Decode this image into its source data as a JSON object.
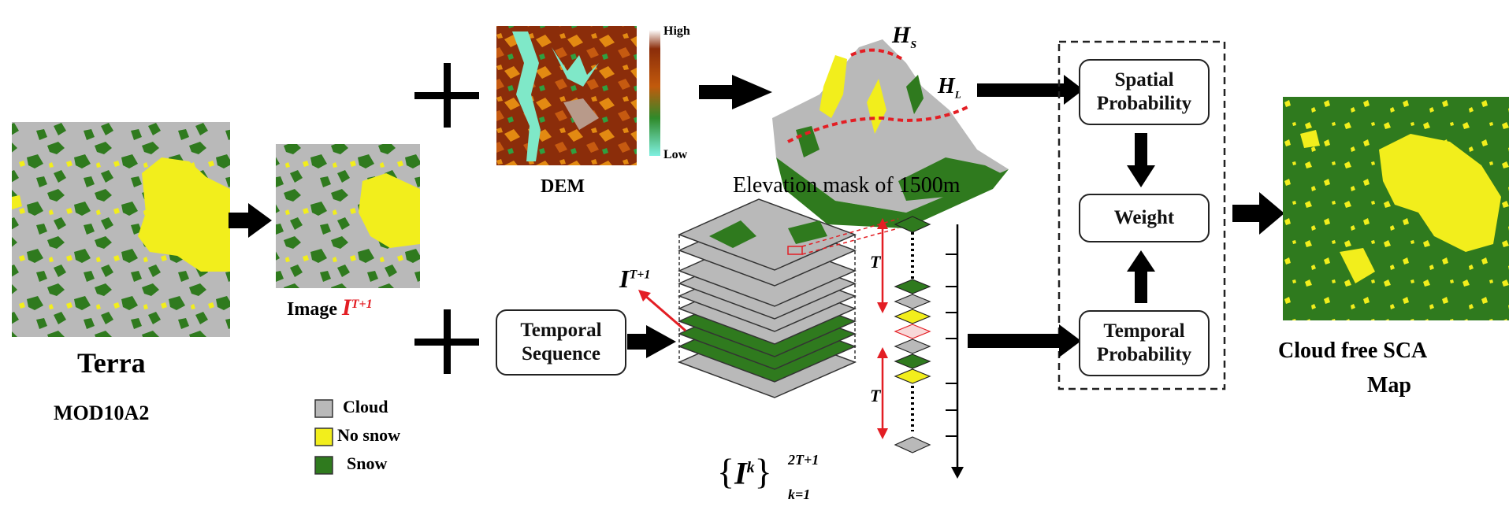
{
  "terra": {
    "title": "Terra",
    "subtitle": "MOD10A2"
  },
  "image_label": {
    "text": "Image",
    "symbol": "I",
    "superscript": "T+1"
  },
  "dem": {
    "label": "DEM",
    "high": "High",
    "low": "Low"
  },
  "elevation": {
    "caption": "Elevation mask of 1500m",
    "hs_sym": "H",
    "hs_sub": "S",
    "hl_sym": "H",
    "hl_sub": "L"
  },
  "boxes": {
    "spatial": [
      "Spatial",
      "Probability"
    ],
    "weight": "Weight",
    "temporal_prob": [
      "Temporal",
      "Probability"
    ],
    "temporal_seq": [
      "Temporal",
      "Sequence"
    ]
  },
  "stack": {
    "pointer_symbol": "I",
    "pointer_sup": "T+1",
    "set_symbol": "I",
    "set_sup_k": "k",
    "set_top": "2T+1",
    "set_bottom": "k=1",
    "t_label": "T"
  },
  "output": {
    "line1": "Cloud free SCA",
    "line2": "Map"
  },
  "legend": [
    {
      "label": "Cloud",
      "color": "#b9b9b9"
    },
    {
      "label": "No snow",
      "color": "#f2ee1c"
    },
    {
      "label": "Snow",
      "color": "#2f7a1e"
    }
  ],
  "colors": {
    "cloud": "#b9b9b9",
    "nosnow": "#f2ee1c",
    "snow": "#2f7a1e",
    "red": "#e31e24"
  }
}
